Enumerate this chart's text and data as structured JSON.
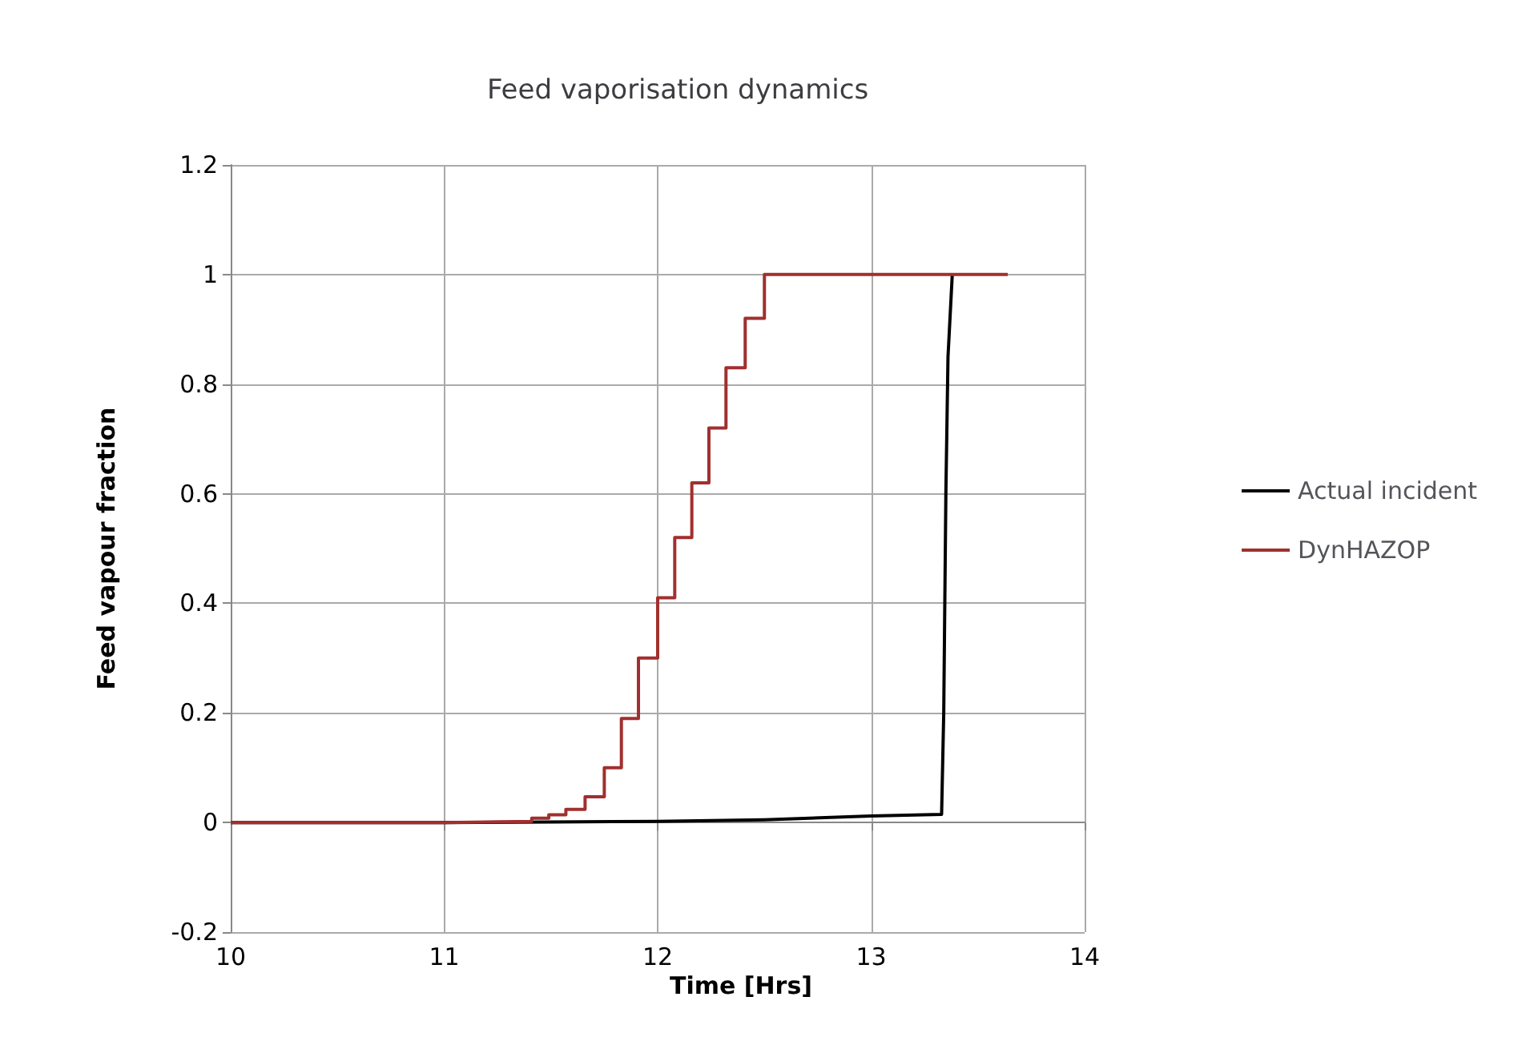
{
  "chart_data": {
    "type": "line",
    "title": "Feed vaporisation dynamics",
    "xlabel": "Time [Hrs]",
    "ylabel": "Feed vapour fraction",
    "xlim": [
      10,
      14
    ],
    "xticks": [
      10,
      11,
      12,
      13,
      14
    ],
    "ylim": [
      -0.2,
      1.2
    ],
    "yticks": [
      -0.2,
      0,
      0.2,
      0.4,
      0.6,
      0.8,
      1,
      1.2
    ],
    "grid": true,
    "legend": "right",
    "marker": "none",
    "series": [
      {
        "name": "Actual incident",
        "color": "#000000",
        "x": [
          10,
          11,
          11.5,
          12,
          12.5,
          13,
          13.33,
          13.34,
          13.35,
          13.36,
          13.38
        ],
        "values": [
          0,
          0,
          0.001,
          0.002,
          0.005,
          0.012,
          0.015,
          0.2,
          0.6,
          0.85,
          1
        ]
      },
      {
        "name": "DynHAZOP",
        "type": "step",
        "color": "#a0302e",
        "x": [
          10,
          11,
          11.41,
          11.49,
          11.57,
          11.66,
          11.75,
          11.83,
          11.91,
          12,
          12.08,
          12.16,
          12.24,
          12.32,
          12.41,
          12.5,
          13.64
        ],
        "values": [
          0,
          0.002,
          0.008,
          0.014,
          0.024,
          0.047,
          0.1,
          0.19,
          0.3,
          0.41,
          0.52,
          0.62,
          0.72,
          0.83,
          0.92,
          1,
          1
        ]
      }
    ]
  }
}
